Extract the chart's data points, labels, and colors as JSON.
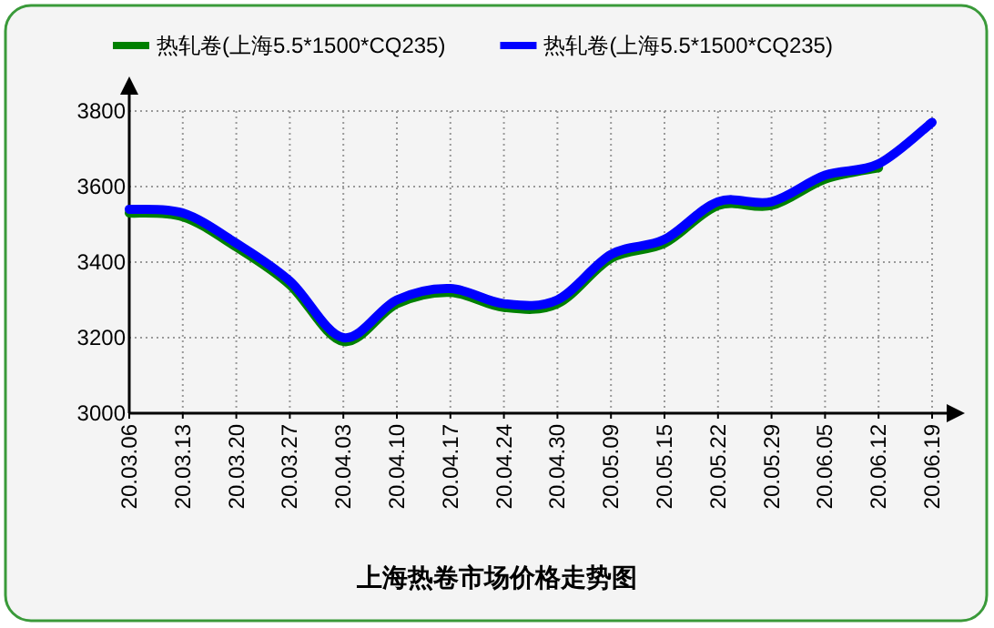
{
  "chart_data": {
    "type": "line",
    "title": "上海热卷市场价格走势图",
    "categories": [
      "20.03.06",
      "20.03.13",
      "20.03.20",
      "20.03.27",
      "20.04.03",
      "20.04.10",
      "20.04.17",
      "20.04.24",
      "20.04.30",
      "20.05.09",
      "20.05.15",
      "20.05.22",
      "20.05.29",
      "20.06.05",
      "20.06.12",
      "20.06.19"
    ],
    "series": [
      {
        "name": "热轧卷(上海5.5*1500*CQ235)",
        "color": "#008000",
        "values": [
          3530,
          3520,
          3440,
          3340,
          3190,
          3290,
          3320,
          3280,
          3290,
          3410,
          3450,
          3550,
          3550,
          3620,
          3650,
          null
        ]
      },
      {
        "name": "热轧卷(上海5.5*1500*CQ235)",
        "color": "#0000ff",
        "values": [
          3540,
          3530,
          3450,
          3350,
          3200,
          3300,
          3330,
          3290,
          3300,
          3420,
          3460,
          3560,
          3560,
          3630,
          3660,
          3770
        ]
      }
    ],
    "ylim": [
      3000,
      3800
    ],
    "yticks": [
      3000,
      3200,
      3400,
      3600,
      3800
    ],
    "grid": true,
    "legend": "top"
  }
}
